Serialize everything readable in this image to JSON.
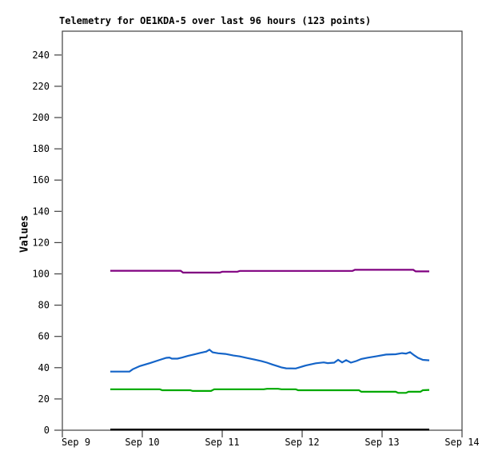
{
  "chart_data": {
    "type": "line",
    "title": "Telemetry for OE1KDA-5 over last 96 hours (123 points)",
    "ylabel": "Values",
    "xlabel": "",
    "grid": false,
    "legend_position": "none",
    "ylim": [
      0,
      255
    ],
    "y_ticks": [
      0,
      20,
      40,
      60,
      80,
      100,
      120,
      140,
      160,
      180,
      200,
      220,
      240
    ],
    "x_ticks": [
      "Sep 9",
      "Sep 10",
      "Sep 11",
      "Sep 12",
      "Sep 13",
      "Sep 14"
    ],
    "x_range_days": [
      0,
      5
    ],
    "axis_color": "#404040",
    "series": [
      {
        "name": "purple-line",
        "color": "#800080",
        "points": [
          [
            0.6,
            102.0
          ],
          [
            1.48,
            102.0
          ],
          [
            1.51,
            100.8
          ],
          [
            1.97,
            100.8
          ],
          [
            2.0,
            101.4
          ],
          [
            2.19,
            101.4
          ],
          [
            2.22,
            101.9
          ],
          [
            3.63,
            101.9
          ],
          [
            3.66,
            102.6
          ],
          [
            4.39,
            102.6
          ],
          [
            4.42,
            101.6
          ],
          [
            4.59,
            101.6
          ]
        ]
      },
      {
        "name": "blue-line",
        "color": "#1464c8",
        "points": [
          [
            0.6,
            37.5
          ],
          [
            0.84,
            37.5
          ],
          [
            0.88,
            39.0
          ],
          [
            0.97,
            41.0
          ],
          [
            1.1,
            43.0
          ],
          [
            1.22,
            45.0
          ],
          [
            1.3,
            46.3
          ],
          [
            1.34,
            46.5
          ],
          [
            1.37,
            45.8
          ],
          [
            1.44,
            45.8
          ],
          [
            1.5,
            46.5
          ],
          [
            1.57,
            47.5
          ],
          [
            1.65,
            48.5
          ],
          [
            1.73,
            49.5
          ],
          [
            1.8,
            50.3
          ],
          [
            1.84,
            51.5
          ],
          [
            1.88,
            49.8
          ],
          [
            1.95,
            49.2
          ],
          [
            2.04,
            48.8
          ],
          [
            2.14,
            47.8
          ],
          [
            2.22,
            47.2
          ],
          [
            2.31,
            46.2
          ],
          [
            2.4,
            45.2
          ],
          [
            2.49,
            44.2
          ],
          [
            2.56,
            43.2
          ],
          [
            2.63,
            42.0
          ],
          [
            2.69,
            41.0
          ],
          [
            2.74,
            40.2
          ],
          [
            2.8,
            39.6
          ],
          [
            2.92,
            39.5
          ],
          [
            3.05,
            41.5
          ],
          [
            3.17,
            42.8
          ],
          [
            3.27,
            43.4
          ],
          [
            3.32,
            42.9
          ],
          [
            3.4,
            43.2
          ],
          [
            3.45,
            45.0
          ],
          [
            3.5,
            43.4
          ],
          [
            3.55,
            44.8
          ],
          [
            3.61,
            43.2
          ],
          [
            3.68,
            44.3
          ],
          [
            3.74,
            45.6
          ],
          [
            3.82,
            46.4
          ],
          [
            3.92,
            47.2
          ],
          [
            4.05,
            48.4
          ],
          [
            4.17,
            48.6
          ],
          [
            4.25,
            49.3
          ],
          [
            4.3,
            49.0
          ],
          [
            4.35,
            49.9
          ],
          [
            4.4,
            48.0
          ],
          [
            4.45,
            46.3
          ],
          [
            4.51,
            45.0
          ],
          [
            4.59,
            44.7
          ]
        ]
      },
      {
        "name": "green-line",
        "color": "#00a800",
        "points": [
          [
            0.6,
            26.2
          ],
          [
            1.22,
            26.2
          ],
          [
            1.25,
            25.6
          ],
          [
            1.6,
            25.6
          ],
          [
            1.63,
            25.1
          ],
          [
            1.86,
            25.1
          ],
          [
            1.9,
            26.2
          ],
          [
            2.52,
            26.2
          ],
          [
            2.56,
            26.5
          ],
          [
            2.7,
            26.5
          ],
          [
            2.74,
            26.2
          ],
          [
            2.92,
            26.2
          ],
          [
            2.95,
            25.6
          ],
          [
            3.71,
            25.6
          ],
          [
            3.74,
            24.6
          ],
          [
            4.17,
            24.6
          ],
          [
            4.2,
            23.9
          ],
          [
            4.3,
            23.9
          ],
          [
            4.33,
            24.6
          ],
          [
            4.48,
            24.6
          ],
          [
            4.51,
            25.6
          ],
          [
            4.59,
            25.8
          ]
        ]
      },
      {
        "name": "black-line",
        "color": "#000000",
        "points": [
          [
            0.6,
            0.4
          ],
          [
            4.59,
            0.4
          ]
        ]
      }
    ]
  }
}
